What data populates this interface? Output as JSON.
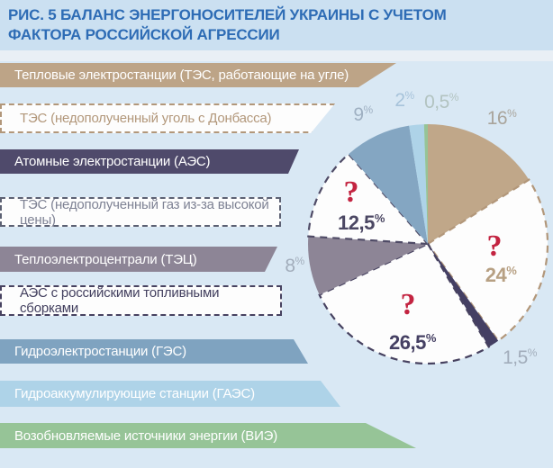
{
  "title": "РИС. 5 БАЛАНС ЭНЕРГОНОСИТЕЛЕЙ УКРАИНЫ С УЧЕТОМ ФАКТОРА РОССИЙСКОЙ АГРЕССИИ",
  "legend": {
    "items": [
      {
        "key": "tes-coal",
        "label": "Тепловые электростанции (ТЭС, работающие на угле)",
        "style": "solid",
        "color": "#bda487"
      },
      {
        "key": "tes-no-coal",
        "label": "ТЭС (недополученный уголь с Донбасса)",
        "style": "dashed",
        "color": "#b2977a"
      },
      {
        "key": "aes",
        "label": "Атомные электростанции (АЭС)",
        "style": "solid",
        "color": "#4f4a6b"
      },
      {
        "key": "tes-no-gas",
        "label": "ТЭС (недополученный газ из-за высокой цены)",
        "style": "dashed",
        "color": "#5c6173"
      },
      {
        "key": "tec",
        "label": "Теплоэлектроцентрали (ТЭЦ)",
        "style": "solid",
        "color": "#8d8596"
      },
      {
        "key": "aes-rus-fuel",
        "label": "АЭС с российскими топливными сборками",
        "style": "dashed",
        "color": "#474260"
      },
      {
        "key": "ges",
        "label": "Гидроэлектростанции (ГЭС)",
        "style": "solid",
        "color": "#7fa3c0"
      },
      {
        "key": "gaes",
        "label": "Гидроаккумулирующие станции (ГАЭС)",
        "style": "solid",
        "color": "#aed3e8"
      },
      {
        "key": "vie",
        "label": "Возобновляемые источники энергии (ВИЭ)",
        "style": "solid",
        "color": "#96c497"
      }
    ]
  },
  "chart_data": {
    "type": "pie",
    "title": "Баланс энергоносителей Украины с учетом фактора российской агрессии",
    "unit": "%",
    "start_angle_deg": 0,
    "direction": "clockwise",
    "missing_fill": "#fdfdfd",
    "question_color": "#c32441",
    "slices": [
      {
        "key": "tes-coal",
        "name": "Тепловые электростанции (ТЭС, работающие на угле)",
        "value": 16,
        "display": "16",
        "style": "solid",
        "color": "#c0a789",
        "label_color": "#a9a49b",
        "question": false
      },
      {
        "key": "tes-no-coal",
        "name": "ТЭС (недополученный уголь с Донбасса)",
        "value": 24,
        "display": "24",
        "style": "dashed",
        "dash_color": "#b2977a",
        "label_color": "#b7a083",
        "question": true
      },
      {
        "key": "aes",
        "name": "Атомные электростанции (АЭС)",
        "value": 1.5,
        "display": "1,5",
        "style": "solid",
        "color": "#443f63",
        "label_color": "#a2adbb",
        "question": false
      },
      {
        "key": "aes-rus-fuel",
        "name": "АЭС с российскими топливными сборками",
        "value": 26.5,
        "display": "26,5",
        "style": "dashed",
        "dash_color": "#474260",
        "label_color": "#454063",
        "question": true
      },
      {
        "key": "tec",
        "name": "Теплоэлектроцентрали (ТЭЦ)",
        "value": 8,
        "display": "8",
        "style": "solid",
        "color": "#8d8596",
        "label_color": "#a2adbb",
        "question": false
      },
      {
        "key": "tes-no-gas",
        "name": "ТЭС (недополученный газ из-за высокой цены)",
        "value": 12.5,
        "display": "12,5",
        "style": "dashed",
        "dash_color": "#4f4b66",
        "label_color": "#4b4763",
        "question": true
      },
      {
        "key": "ges",
        "name": "Гидроэлектростанции (ГЭС)",
        "value": 9,
        "display": "9",
        "style": "solid",
        "color": "#84a6c2",
        "label_color": "#9fb0c2",
        "question": false
      },
      {
        "key": "gaes",
        "name": "Гидроаккумулирующие станции (ГАЭС)",
        "value": 2,
        "display": "2",
        "style": "solid",
        "color": "#aed3e8",
        "label_color": "#a7c3da",
        "question": false
      },
      {
        "key": "vie",
        "name": "Возобновляемые источники энергии (ВИЭ)",
        "value": 0.5,
        "display": "0,5",
        "style": "solid",
        "color": "#96c497",
        "label_color": "#b2c3c0",
        "question": false
      }
    ]
  }
}
